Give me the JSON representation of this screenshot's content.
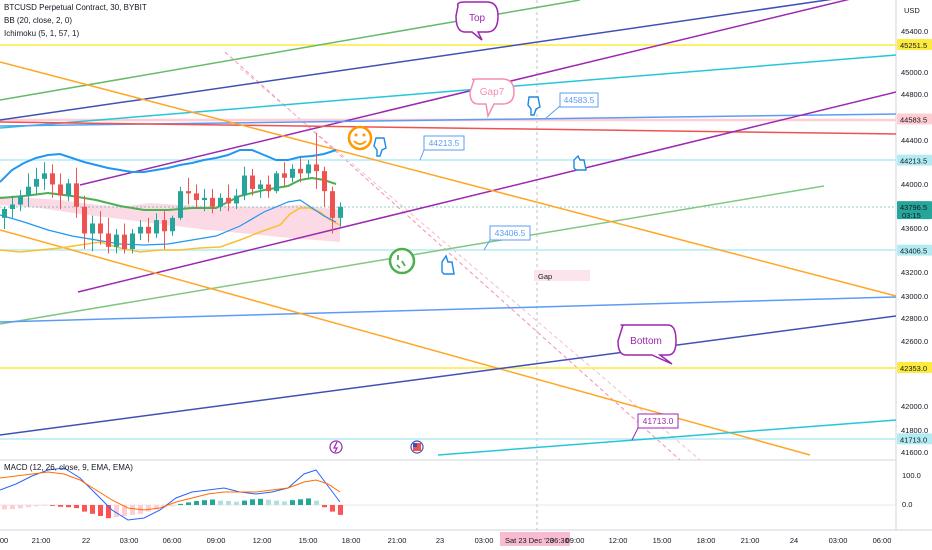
{
  "header": {
    "symbol_line": "BTCUSD Perpetual Contract, 30, BYBIT",
    "bb_line": "BB (20, close, 2, 0)",
    "ichimoku_line": "Ichimoku (5, 1, 57, 1)",
    "macd_line": "MACD (12, 26, close, 9, EMA, EMA)",
    "currency": "USD"
  },
  "colors": {
    "up_candle": "#26a69a",
    "down_candle": "#ef5350",
    "bb_band": "#2196f3",
    "bb_basis": "#4caf50",
    "ichimoku_line": "#fbc02d",
    "cloud": "#f8bbd0",
    "trend_green": "#66bb6a",
    "trend_navy": "#3f51b5",
    "trend_purple": "#9c27b0",
    "trend_cyan": "#26c6da",
    "trend_orange": "#ffa726",
    "trend_blue": "#5c9cf5",
    "level_yellow": "#ffeb3b",
    "level_red": "#ef5350",
    "pink_channel": "#f48fb1"
  },
  "chart_data": {
    "type": "candlestick",
    "symbol": "BTCUSD Perpetual Contract",
    "interval": "30",
    "exchange": "BYBIT",
    "currency": "USD",
    "ylim": [
      41600,
      45500
    ],
    "y_ticks": [
      "45400.0",
      "45000.0",
      "44800.0",
      "44400.0",
      "44000.0",
      "43600.0",
      "43200.0",
      "43000.0",
      "42800.0",
      "42600.0",
      "42000.0",
      "41800.0",
      "41600.0"
    ],
    "x_ticks": [
      "00",
      "21:00",
      "22",
      "03:00",
      "06:00",
      "09:00",
      "12:00",
      "15:00",
      "18:00",
      "21:00",
      "23",
      "03:00",
      "Sat 23 Dec '23",
      "06:30",
      "09:00",
      "12:00",
      "15:00",
      "18:00",
      "21:00",
      "24",
      "03:00",
      "06:00"
    ],
    "price_labels": [
      {
        "value": 45251.5,
        "text": "45251.5",
        "color": "#ffeb3b",
        "text_color": "#131722"
      },
      {
        "value": 44583.5,
        "text": "44583.5",
        "color": "#ffcdd2",
        "text_color": "#131722"
      },
      {
        "value": 44213.5,
        "text": "44213.5",
        "color": "#b2ebf2",
        "text_color": "#131722"
      },
      {
        "value": 43796.5,
        "text": "43796.5",
        "sub": "03:15",
        "color": "#26a69a",
        "text_color": "#ffffff"
      },
      {
        "value": 43406.5,
        "text": "43406.5",
        "color": "#b2ebf2",
        "text_color": "#131722"
      },
      {
        "value": 42353.0,
        "text": "42353.0",
        "color": "#ffeb3b",
        "text_color": "#131722"
      },
      {
        "value": 41713.0,
        "text": "41713.0",
        "color": "#b2ebf2",
        "text_color": "#131722"
      }
    ],
    "macd_ticks": [
      "100.0",
      "0.0"
    ],
    "candles": [
      {
        "o": 43700,
        "h": 43800,
        "c": 43780,
        "l": 43600
      },
      {
        "o": 43780,
        "h": 43900,
        "c": 43820,
        "l": 43700
      },
      {
        "o": 43820,
        "h": 43950,
        "c": 43900,
        "l": 43760
      },
      {
        "o": 43900,
        "h": 44100,
        "c": 43980,
        "l": 43800
      },
      {
        "o": 43980,
        "h": 44150,
        "c": 44050,
        "l": 43900
      },
      {
        "o": 44050,
        "h": 44200,
        "c": 44100,
        "l": 43950
      },
      {
        "o": 44100,
        "h": 44180,
        "c": 44000,
        "l": 43880
      },
      {
        "o": 44000,
        "h": 44100,
        "c": 43900,
        "l": 43780
      },
      {
        "o": 43900,
        "h": 44050,
        "c": 44010,
        "l": 43850
      },
      {
        "o": 44010,
        "h": 44150,
        "c": 43800,
        "l": 43700
      },
      {
        "o": 43800,
        "h": 43900,
        "c": 43560,
        "l": 43420
      },
      {
        "o": 43560,
        "h": 43720,
        "c": 43650,
        "l": 43400
      },
      {
        "o": 43650,
        "h": 43760,
        "c": 43560,
        "l": 43460
      },
      {
        "o": 43560,
        "h": 43700,
        "c": 43440,
        "l": 43380
      },
      {
        "o": 43440,
        "h": 43600,
        "c": 43550,
        "l": 43380
      },
      {
        "o": 43550,
        "h": 43650,
        "c": 43420,
        "l": 43380
      },
      {
        "o": 43420,
        "h": 43600,
        "c": 43560,
        "l": 43380
      },
      {
        "o": 43560,
        "h": 43680,
        "c": 43620,
        "l": 43500
      },
      {
        "o": 43620,
        "h": 43700,
        "c": 43560,
        "l": 43480
      },
      {
        "o": 43560,
        "h": 43740,
        "c": 43680,
        "l": 43520
      },
      {
        "o": 43680,
        "h": 43760,
        "c": 43580,
        "l": 43420
      },
      {
        "o": 43580,
        "h": 43720,
        "c": 43700,
        "l": 43540
      },
      {
        "o": 43700,
        "h": 43980,
        "c": 43940,
        "l": 43680
      },
      {
        "o": 43940,
        "h": 44060,
        "c": 43920,
        "l": 43820
      },
      {
        "o": 43920,
        "h": 44000,
        "c": 43860,
        "l": 43780
      },
      {
        "o": 43860,
        "h": 43960,
        "c": 43880,
        "l": 43760
      },
      {
        "o": 43880,
        "h": 43960,
        "c": 43800,
        "l": 43740
      },
      {
        "o": 43800,
        "h": 43920,
        "c": 43880,
        "l": 43760
      },
      {
        "o": 43880,
        "h": 44000,
        "c": 43830,
        "l": 43760
      },
      {
        "o": 43830,
        "h": 43960,
        "c": 43900,
        "l": 43780
      },
      {
        "o": 43900,
        "h": 44160,
        "c": 44080,
        "l": 43860
      },
      {
        "o": 44080,
        "h": 44140,
        "c": 43960,
        "l": 43900
      },
      {
        "o": 43960,
        "h": 44040,
        "c": 44000,
        "l": 43880
      },
      {
        "o": 44000,
        "h": 44080,
        "c": 43940,
        "l": 43880
      },
      {
        "o": 43940,
        "h": 44120,
        "c": 44100,
        "l": 43920
      },
      {
        "o": 44100,
        "h": 44200,
        "c": 44060,
        "l": 43980
      },
      {
        "o": 44060,
        "h": 44180,
        "c": 44140,
        "l": 44020
      },
      {
        "o": 44140,
        "h": 44240,
        "c": 44100,
        "l": 44020
      },
      {
        "o": 44100,
        "h": 44220,
        "c": 44180,
        "l": 44060
      },
      {
        "o": 44180,
        "h": 44460,
        "c": 44120,
        "l": 43960
      },
      {
        "o": 44120,
        "h": 44160,
        "c": 43940,
        "l": 43800
      },
      {
        "o": 43940,
        "h": 43980,
        "c": 43700,
        "l": 43560
      },
      {
        "o": 43700,
        "h": 43840,
        "c": 43800,
        "l": 43620
      }
    ],
    "macd_hist": [
      -20,
      -18,
      -15,
      -10,
      -6,
      -2,
      -4,
      -8,
      -10,
      -14,
      -30,
      -40,
      -50,
      -60,
      -55,
      -50,
      -45,
      -40,
      -30,
      -20,
      -12,
      -6,
      5,
      12,
      18,
      22,
      25,
      20,
      18,
      15,
      20,
      26,
      28,
      24,
      20,
      16,
      22,
      26,
      30,
      20,
      -10,
      -30,
      -45
    ]
  },
  "annotations": {
    "top": "Top",
    "gap7": "Gap7",
    "bottom": "Bottom",
    "gap": "Gap",
    "price_44583": "44583.5",
    "price_44213": "44213.5",
    "price_43406": "43406.5",
    "price_41713": "41713.0"
  }
}
